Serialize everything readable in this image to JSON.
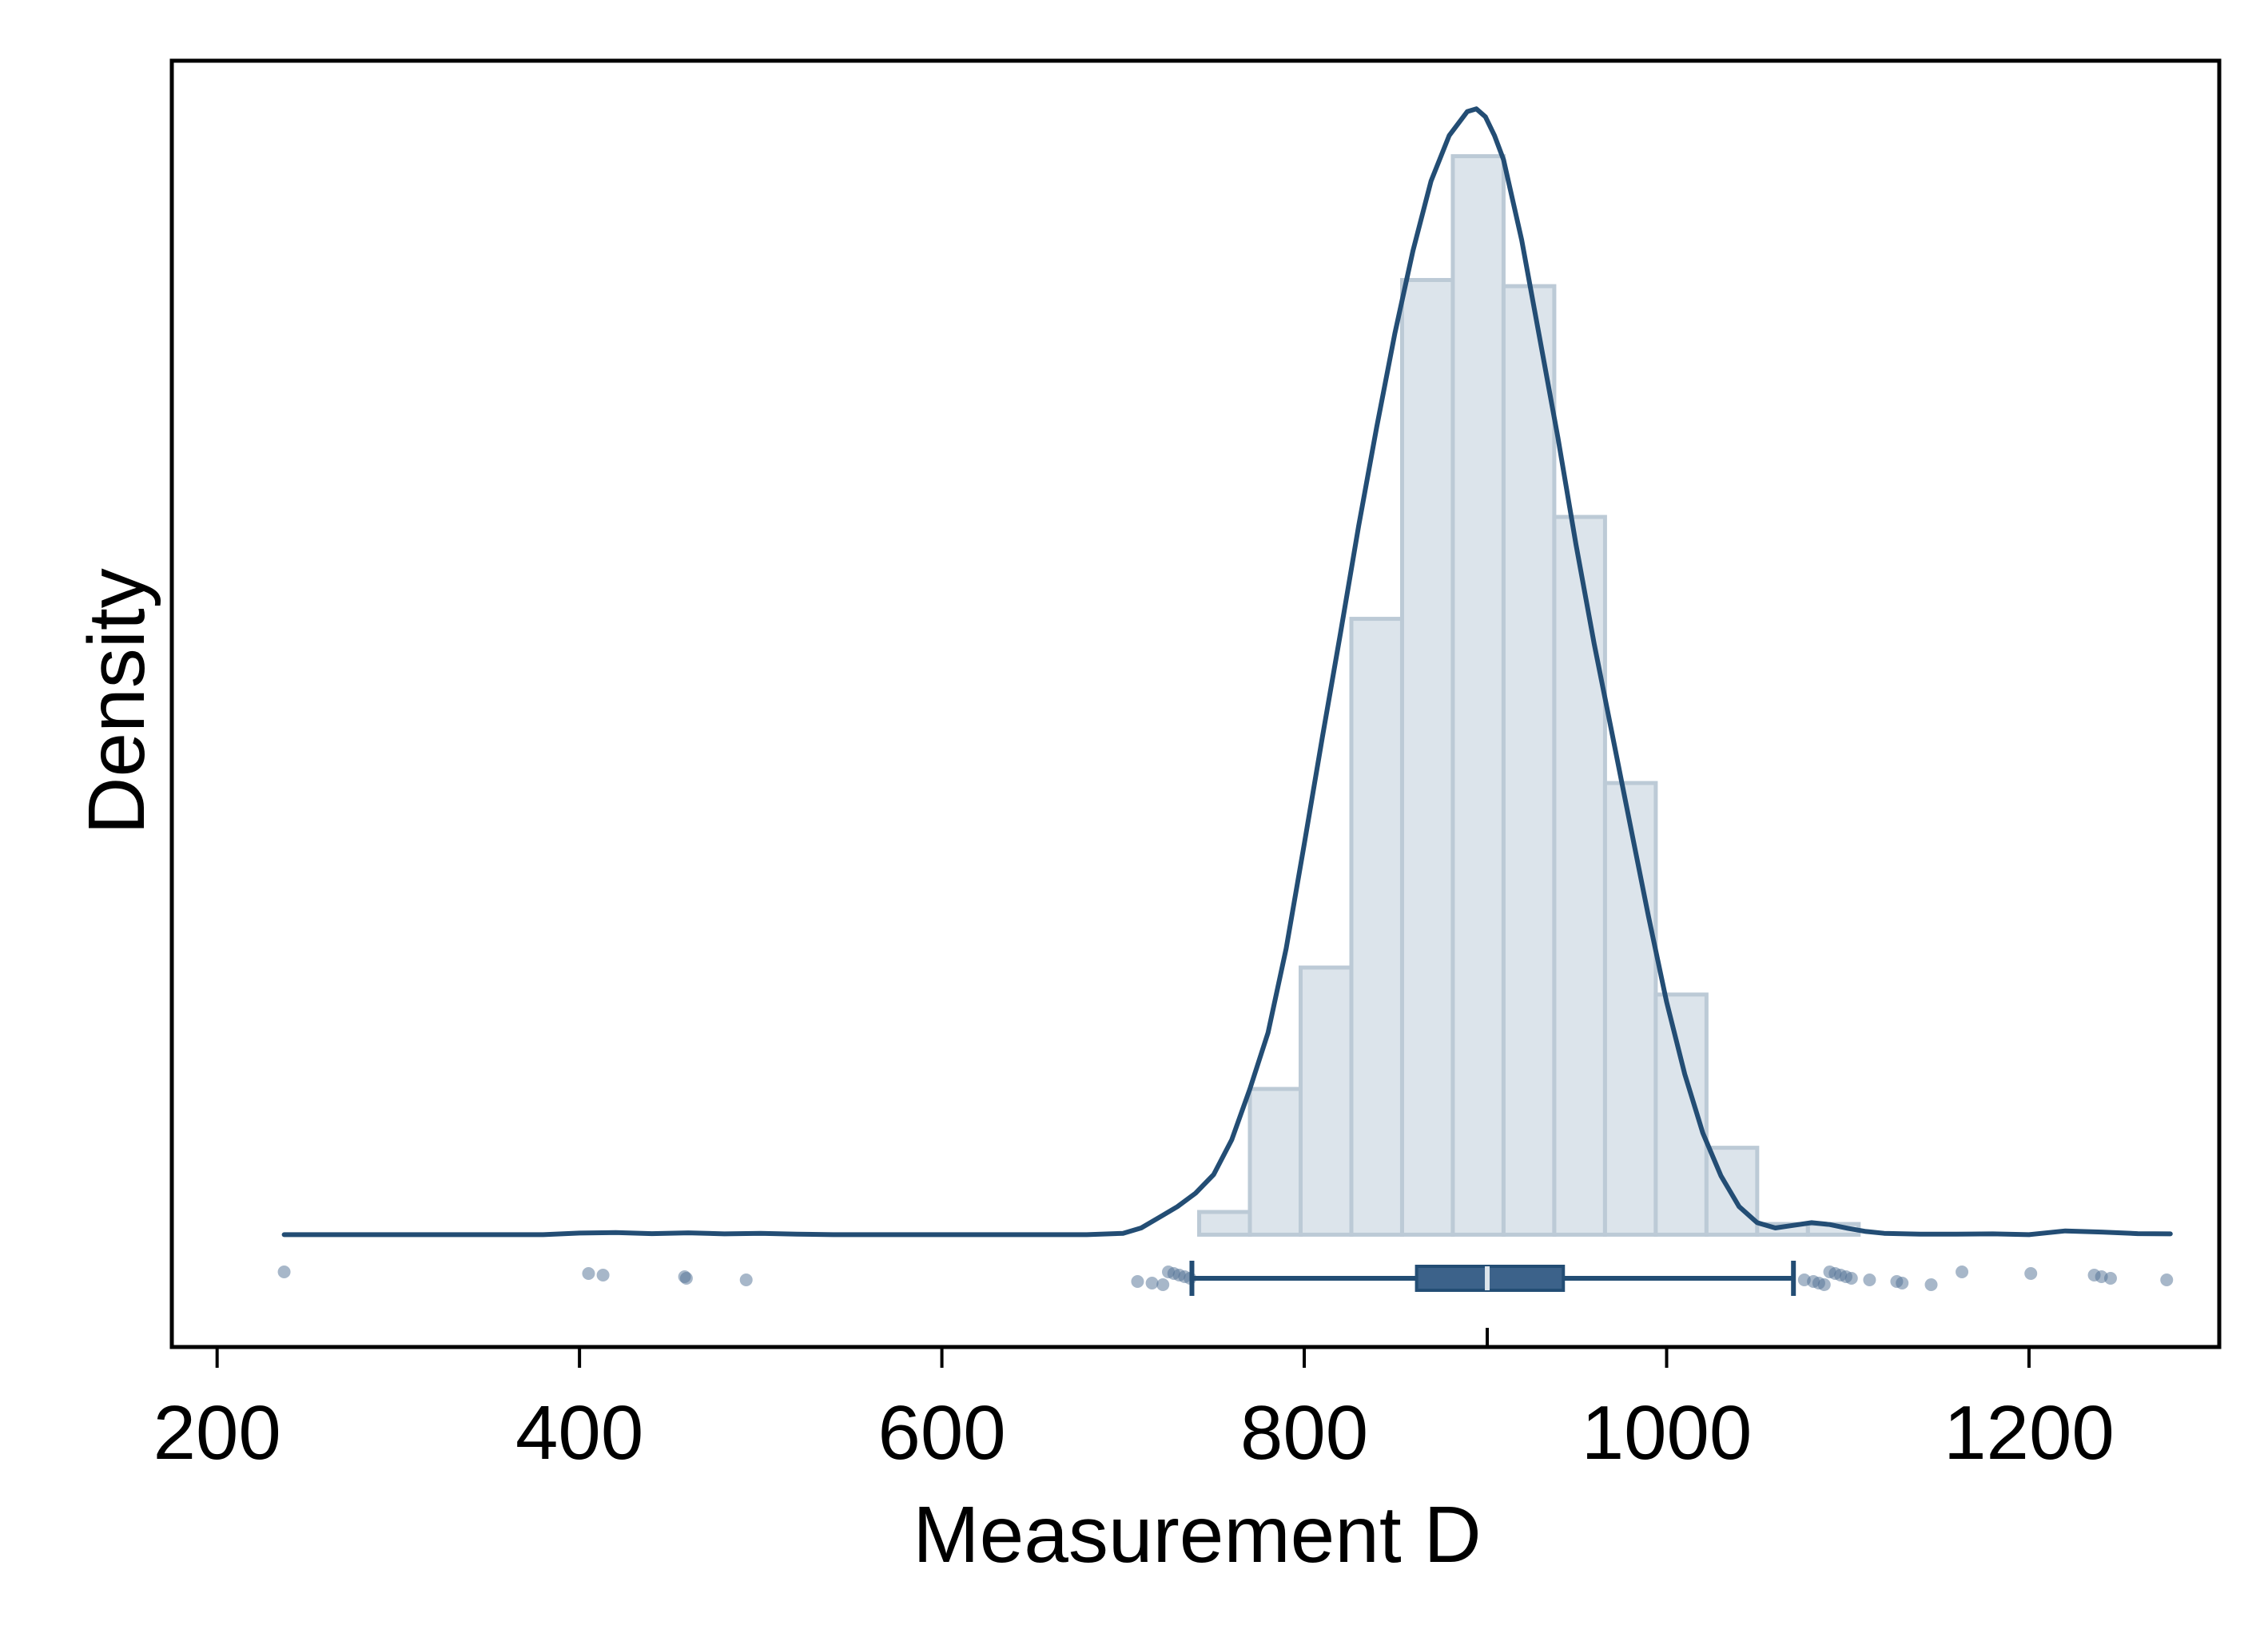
{
  "chart_data": {
    "type": "histogram",
    "xlabel": "Measurement D",
    "ylabel": "Density",
    "xlim": [
      175,
      1305
    ],
    "ylim": [
      -0.00042,
      0.00439
    ],
    "x_ticks": [
      200,
      400,
      600,
      800,
      1000,
      1200
    ],
    "y_ticks_visible": false,
    "grid": false,
    "colors": {
      "histogram_fill": "#dce4eb",
      "histogram_edge": "#bccad6",
      "kde_line": "#234d74",
      "box": "#3c628a",
      "median": "#dce4eb",
      "points": "#4f7094"
    },
    "histogram": {
      "bin_edges": [
        742,
        770,
        798,
        826,
        854,
        882,
        910,
        938,
        966,
        994,
        1022,
        1050,
        1078,
        1106
      ],
      "densities": [
        8.5e-05,
        0.000545,
        0.000999,
        0.002303,
        0.00357,
        0.004033,
        0.003547,
        0.002684,
        0.001689,
        0.000898,
        0.000325,
        4e-05,
        4e-05
      ]
    },
    "kde": {
      "x": [
        237,
        260,
        300,
        340,
        380,
        400,
        420,
        440,
        460,
        480,
        500,
        520,
        540,
        560,
        600,
        640,
        680,
        700,
        710,
        720,
        730,
        740,
        750,
        760,
        770,
        780,
        790,
        800,
        810,
        820,
        830,
        840,
        850,
        860,
        870,
        880,
        890,
        895,
        900,
        905,
        910,
        920,
        930,
        940,
        950,
        960,
        970,
        980,
        990,
        1000,
        1010,
        1020,
        1030,
        1040,
        1050,
        1060,
        1070,
        1080,
        1090,
        1100,
        1110,
        1120,
        1140,
        1160,
        1180,
        1200,
        1220,
        1240,
        1260,
        1278
      ],
      "y": [
        0.0,
        0.0,
        0.0,
        0.0,
        0.0,
        6e-06,
        8e-06,
        4e-06,
        7e-06,
        3e-06,
        5e-06,
        2e-06,
        0.0,
        0.0,
        0.0,
        0.0,
        0.0,
        5e-06,
        2.5e-05,
        6.5e-05,
        0.000105,
        0.000155,
        0.000225,
        0.000355,
        0.000545,
        0.000755,
        0.00107,
        0.00146,
        0.00186,
        0.00225,
        0.00265,
        0.00302,
        0.00337,
        0.00368,
        0.00394,
        0.00411,
        0.0042,
        0.00421,
        0.00418,
        0.00411,
        0.00402,
        0.00372,
        0.00335,
        0.00298,
        0.00258,
        0.00221,
        0.00187,
        0.00153,
        0.00119,
        0.00087,
        0.0006,
        0.00038,
        0.00022,
        0.000105,
        4.5e-05,
        2.5e-05,
        3.5e-05,
        4.5e-05,
        3.8e-05,
        2.4e-05,
        1.2e-05,
        5e-06,
        2e-06,
        2e-06,
        3e-06,
        0.0,
        1.4e-05,
        1e-05,
        4e-06,
        3e-06
      ]
    },
    "boxplot": {
      "whisker_low": 738,
      "q1": 862,
      "median": 901,
      "q3": 943,
      "whisker_high": 1070
    },
    "points": [
      237,
      405,
      413,
      458,
      459,
      492,
      708,
      716,
      722,
      725,
      728,
      731,
      734,
      737,
      1076,
      1081,
      1084,
      1087,
      1090,
      1093,
      1096,
      1099,
      1102,
      1112,
      1127,
      1130,
      1146,
      1163,
      1201,
      1236,
      1240,
      1245,
      1276
    ]
  }
}
